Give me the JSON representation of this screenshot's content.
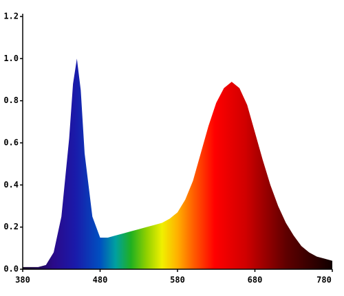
{
  "chart_data": {
    "type": "area",
    "x": [
      380,
      390,
      400,
      410,
      420,
      430,
      440,
      445,
      450,
      455,
      460,
      470,
      480,
      490,
      500,
      510,
      520,
      530,
      540,
      550,
      560,
      570,
      580,
      590,
      600,
      610,
      620,
      630,
      640,
      650,
      660,
      670,
      680,
      690,
      700,
      710,
      720,
      730,
      740,
      750,
      760,
      770,
      780
    ],
    "values": [
      0.01,
      0.01,
      0.01,
      0.02,
      0.08,
      0.25,
      0.62,
      0.88,
      1.0,
      0.85,
      0.55,
      0.25,
      0.15,
      0.15,
      0.16,
      0.17,
      0.18,
      0.19,
      0.2,
      0.21,
      0.22,
      0.24,
      0.27,
      0.33,
      0.42,
      0.55,
      0.68,
      0.79,
      0.86,
      0.89,
      0.86,
      0.78,
      0.65,
      0.52,
      0.4,
      0.3,
      0.22,
      0.16,
      0.11,
      0.08,
      0.06,
      0.05,
      0.04
    ],
    "xlim": [
      380,
      780
    ],
    "xticks": [
      380,
      480,
      580,
      680,
      780
    ],
    "ylim": [
      0,
      1.2
    ],
    "yticks": [
      {
        "value": 0,
        "label": "0.0"
      },
      0.2,
      0.4,
      0.6,
      0.8,
      {
        "value": 1,
        "label": "1.0"
      },
      1.2
    ]
  }
}
